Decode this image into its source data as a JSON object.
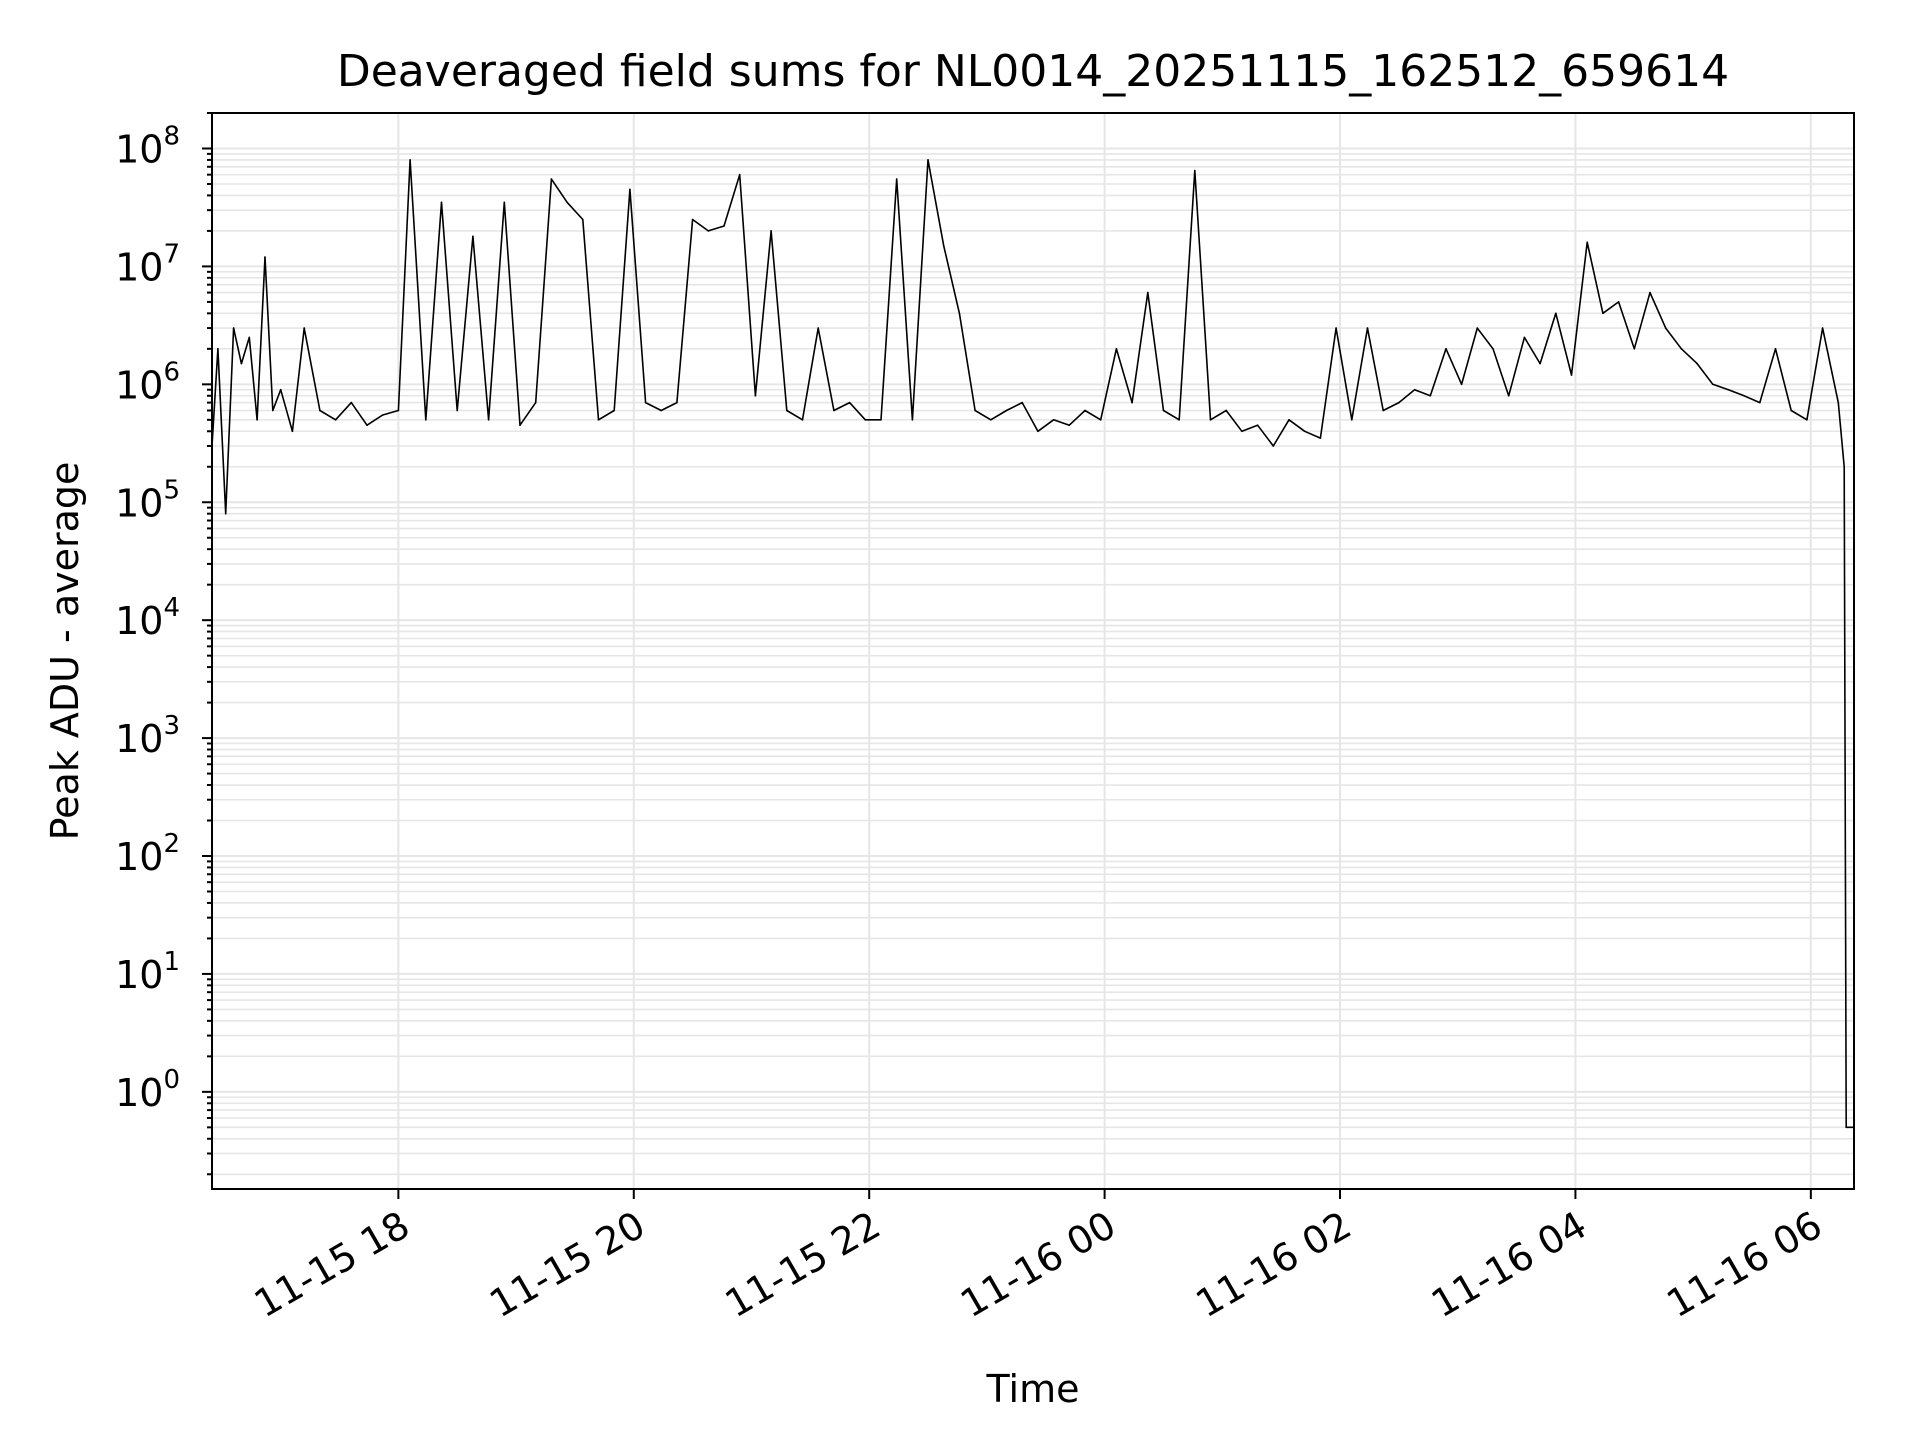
{
  "chart_data": {
    "type": "line",
    "title": "Deaveraged field sums for NL0014_20251115_162512_659614",
    "xlabel": "Time",
    "ylabel": "Peak ADU - average",
    "yscale": "log",
    "grid": true,
    "legend": "none",
    "line_color": "#000000",
    "grid_color": "#e6e6e6",
    "xlim": [
      "2025-11-15 16:25",
      "2025-11-16 06:22"
    ],
    "ylim": [
      0.15,
      200000000
    ],
    "x_ticks": [
      {
        "value": "2025-11-15 18:00",
        "label": "11-15 18"
      },
      {
        "value": "2025-11-15 20:00",
        "label": "11-15 20"
      },
      {
        "value": "2025-11-15 22:00",
        "label": "11-15 22"
      },
      {
        "value": "2025-11-16 00:00",
        "label": "11-16 00"
      },
      {
        "value": "2025-11-16 02:00",
        "label": "11-16 02"
      },
      {
        "value": "2025-11-16 04:00",
        "label": "11-16 04"
      },
      {
        "value": "2025-11-16 06:00",
        "label": "11-16 06"
      }
    ],
    "y_ticks": [
      {
        "value": 1,
        "base": "10",
        "exp": "0"
      },
      {
        "value": 10,
        "base": "10",
        "exp": "1"
      },
      {
        "value": 100,
        "base": "10",
        "exp": "2"
      },
      {
        "value": 1000,
        "base": "10",
        "exp": "3"
      },
      {
        "value": 10000,
        "base": "10",
        "exp": "4"
      },
      {
        "value": 100000,
        "base": "10",
        "exp": "5"
      },
      {
        "value": 1000000,
        "base": "10",
        "exp": "6"
      },
      {
        "value": 10000000,
        "base": "10",
        "exp": "7"
      },
      {
        "value": 100000000,
        "base": "10",
        "exp": "8"
      }
    ],
    "series": [
      {
        "x": [
          "2025-11-15 16:25",
          "2025-11-15 16:28",
          "2025-11-15 16:32",
          "2025-11-15 16:36",
          "2025-11-15 16:40",
          "2025-11-15 16:44",
          "2025-11-15 16:48",
          "2025-11-15 16:52",
          "2025-11-15 16:56",
          "2025-11-15 17:00",
          "2025-11-15 17:06",
          "2025-11-15 17:12",
          "2025-11-15 17:20",
          "2025-11-15 17:28",
          "2025-11-15 17:36",
          "2025-11-15 17:44",
          "2025-11-15 17:52",
          "2025-11-15 18:00",
          "2025-11-15 18:06",
          "2025-11-15 18:14",
          "2025-11-15 18:22",
          "2025-11-15 18:30",
          "2025-11-15 18:38",
          "2025-11-15 18:46",
          "2025-11-15 18:54",
          "2025-11-15 19:02",
          "2025-11-15 19:10",
          "2025-11-15 19:18",
          "2025-11-15 19:26",
          "2025-11-15 19:34",
          "2025-11-15 19:42",
          "2025-11-15 19:50",
          "2025-11-15 19:58",
          "2025-11-15 20:06",
          "2025-11-15 20:14",
          "2025-11-15 20:22",
          "2025-11-15 20:30",
          "2025-11-15 20:38",
          "2025-11-15 20:46",
          "2025-11-15 20:54",
          "2025-11-15 21:02",
          "2025-11-15 21:10",
          "2025-11-15 21:18",
          "2025-11-15 21:26",
          "2025-11-15 21:34",
          "2025-11-15 21:42",
          "2025-11-15 21:50",
          "2025-11-15 21:58",
          "2025-11-15 22:06",
          "2025-11-15 22:14",
          "2025-11-15 22:22",
          "2025-11-15 22:30",
          "2025-11-15 22:38",
          "2025-11-15 22:46",
          "2025-11-15 22:54",
          "2025-11-15 23:02",
          "2025-11-15 23:10",
          "2025-11-15 23:18",
          "2025-11-15 23:26",
          "2025-11-15 23:34",
          "2025-11-15 23:42",
          "2025-11-15 23:50",
          "2025-11-15 23:58",
          "2025-11-16 00:06",
          "2025-11-16 00:14",
          "2025-11-16 00:22",
          "2025-11-16 00:30",
          "2025-11-16 00:38",
          "2025-11-16 00:46",
          "2025-11-16 00:54",
          "2025-11-16 01:02",
          "2025-11-16 01:10",
          "2025-11-16 01:18",
          "2025-11-16 01:26",
          "2025-11-16 01:34",
          "2025-11-16 01:42",
          "2025-11-16 01:50",
          "2025-11-16 01:58",
          "2025-11-16 02:06",
          "2025-11-16 02:14",
          "2025-11-16 02:22",
          "2025-11-16 02:30",
          "2025-11-16 02:38",
          "2025-11-16 02:46",
          "2025-11-16 02:54",
          "2025-11-16 03:02",
          "2025-11-16 03:10",
          "2025-11-16 03:18",
          "2025-11-16 03:26",
          "2025-11-16 03:34",
          "2025-11-16 03:42",
          "2025-11-16 03:50",
          "2025-11-16 03:58",
          "2025-11-16 04:06",
          "2025-11-16 04:14",
          "2025-11-16 04:22",
          "2025-11-16 04:30",
          "2025-11-16 04:38",
          "2025-11-16 04:46",
          "2025-11-16 04:54",
          "2025-11-16 05:02",
          "2025-11-16 05:10",
          "2025-11-16 05:18",
          "2025-11-16 05:26",
          "2025-11-16 05:34",
          "2025-11-16 05:42",
          "2025-11-16 05:50",
          "2025-11-16 05:58",
          "2025-11-16 06:06",
          "2025-11-16 06:14",
          "2025-11-16 06:17",
          "2025-11-16 06:18",
          "2025-11-16 06:22"
        ],
        "y": [
          300000,
          2000000,
          80000,
          3000000,
          1500000,
          2500000,
          500000,
          12000000,
          600000,
          900000,
          400000,
          3000000,
          600000,
          500000,
          700000,
          450000,
          550000,
          600000,
          80000000,
          500000,
          35000000,
          600000,
          18000000,
          500000,
          35000000,
          450000,
          700000,
          55000000,
          35000000,
          25000000,
          500000,
          600000,
          45000000,
          700000,
          600000,
          700000,
          25000000,
          20000000,
          22000000,
          60000000,
          800000,
          20000000,
          600000,
          500000,
          3000000,
          600000,
          700000,
          500000,
          500000,
          55000000,
          500000,
          80000000,
          15000000,
          4000000,
          600000,
          500000,
          600000,
          700000,
          400000,
          500000,
          450000,
          600000,
          500000,
          2000000,
          700000,
          6000000,
          600000,
          500000,
          65000000,
          500000,
          600000,
          400000,
          450000,
          300000,
          500000,
          400000,
          350000,
          3000000,
          500000,
          3000000,
          600000,
          700000,
          900000,
          800000,
          2000000,
          1000000,
          3000000,
          2000000,
          800000,
          2500000,
          1500000,
          4000000,
          1200000,
          16000000,
          4000000,
          5000000,
          2000000,
          6000000,
          3000000,
          2000000,
          1500000,
          1000000,
          900000,
          800000,
          700000,
          2000000,
          600000,
          500000,
          3000000,
          700000,
          200000,
          0.5,
          0.5
        ]
      }
    ]
  }
}
